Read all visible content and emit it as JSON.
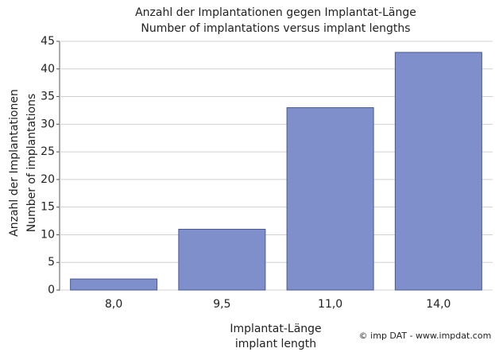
{
  "chart_data": {
    "type": "bar",
    "title": "Anzahl der Implantationen gegen Implantat-Länge",
    "subtitle": "Number of implantations versus implant lengths",
    "ylabel": [
      "Anzahl der Implantationen",
      "Number of implantations"
    ],
    "xlabel": [
      "Implantat-Länge",
      "implant length"
    ],
    "credit": "© imp DAT - www.impdat.com",
    "categories": [
      "8,0",
      "9,5",
      "11,0",
      "14,0"
    ],
    "values": [
      2,
      11,
      33,
      43
    ],
    "color": "#7f8fcc",
    "ylim": [
      0,
      45
    ],
    "yticks": [
      0,
      5,
      10,
      15,
      20,
      25,
      30,
      35,
      40,
      45
    ],
    "grid": true
  }
}
